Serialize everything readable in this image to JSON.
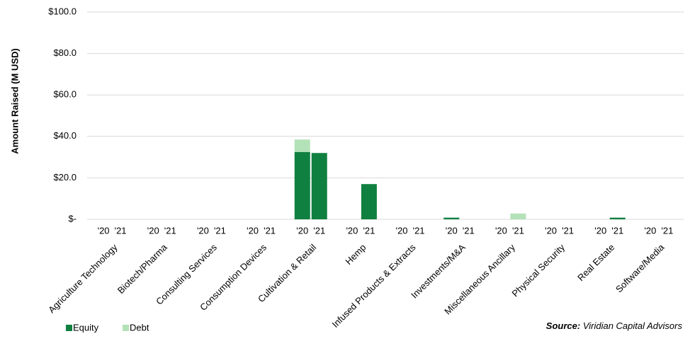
{
  "chart_data": {
    "type": "bar",
    "stacked": true,
    "y_label": "Amount Raised (M USD)",
    "groups": [
      "Agriculture Technology",
      "Biotech/Pharma",
      "Consulting Services",
      "Consumption Devices",
      "Cultivation & Retail",
      "Hemp",
      "Infused Products & Extracts",
      "Investments/M&A",
      "Miscellaneous Ancillary",
      "Physical Security",
      "Real Estate",
      "Software/Media"
    ],
    "categories": [
      "'20",
      "'21",
      "'20",
      "'21",
      "'20",
      "'21",
      "'20",
      "'21",
      "'20",
      "'21",
      "'20",
      "'21",
      "'20",
      "'21",
      "'20",
      "'21",
      "'20",
      "'21",
      "'20",
      "'21",
      "'20",
      "'21",
      "'20",
      "'21"
    ],
    "series": [
      {
        "name": "Equity",
        "color": "#108040",
        "values": [
          null,
          null,
          null,
          null,
          null,
          null,
          null,
          null,
          32.5,
          32,
          null,
          17,
          null,
          null,
          0.8,
          null,
          null,
          null,
          null,
          null,
          null,
          0.8,
          null,
          null
        ]
      },
      {
        "name": "Debt",
        "color": "#b4e2b8",
        "values": [
          null,
          null,
          null,
          null,
          null,
          null,
          null,
          null,
          6,
          null,
          null,
          null,
          null,
          null,
          null,
          null,
          null,
          2.8,
          null,
          null,
          null,
          null,
          null,
          null
        ]
      }
    ],
    "ylim": [
      0,
      100
    ],
    "yticks": [
      {
        "value": 0,
        "label": "$-"
      },
      {
        "value": 20,
        "label": "$20.0"
      },
      {
        "value": 40,
        "label": "$40.0"
      },
      {
        "value": 60,
        "label": "$60.0"
      },
      {
        "value": 80,
        "label": "$80.0"
      },
      {
        "value": 100,
        "label": "$100.0"
      }
    ],
    "grid": true,
    "source_label": "Source:",
    "source": "Viridian Capital Advisors"
  }
}
